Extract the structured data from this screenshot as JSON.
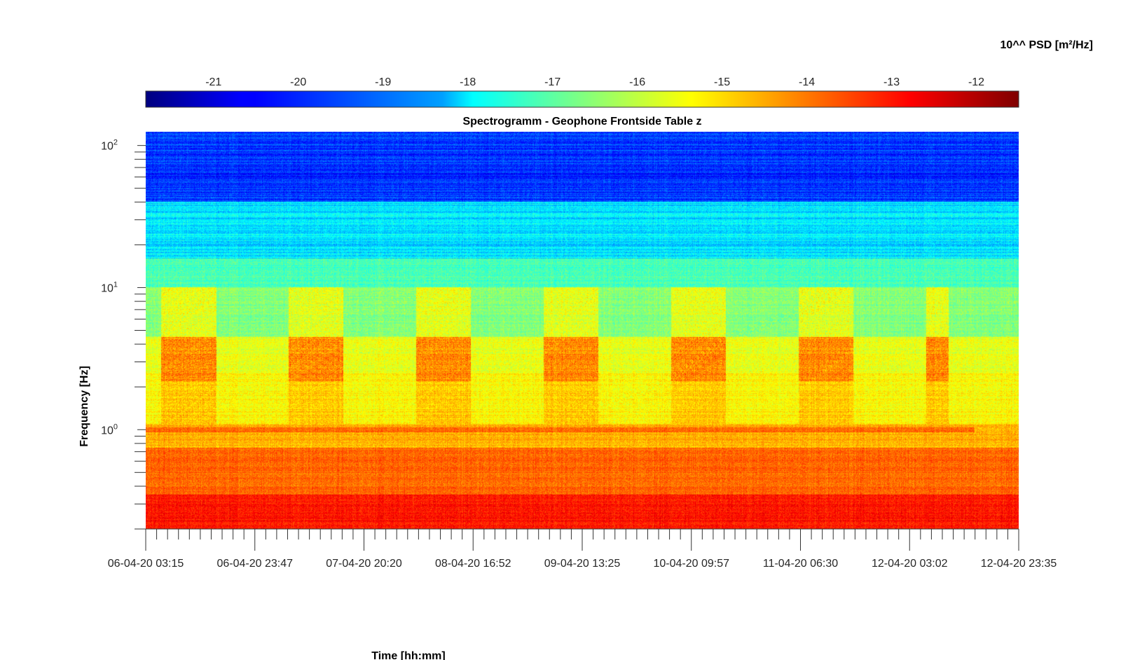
{
  "chart_data": {
    "type": "heatmap",
    "title": "Spectrogramm - Geophone Frontside Table z",
    "xlabel": "Time [hh:mm]",
    "ylabel": "Frequency [Hz]",
    "colorbar_label": "10^^ PSD [m²/Hz]",
    "colormap": "jet",
    "color_range": [
      -21.8,
      -11.5
    ],
    "colorbar_ticks": [
      -21,
      -20,
      -19,
      -18,
      -17,
      -16,
      -15,
      -14,
      -13,
      -12
    ],
    "x_tick_labels": [
      "06-04-20 03:15",
      "06-04-20 23:47",
      "07-04-20 20:20",
      "08-04-20 16:52",
      "09-04-20 13:25",
      "10-04-20 09:57",
      "11-04-20 06:30",
      "12-04-20 03:02",
      "12-04-20 23:35"
    ],
    "y_scale": "log",
    "y_range": [
      0.2,
      125
    ],
    "y_tick_exponents": [
      0,
      1,
      2
    ],
    "x_range": [
      "06-04-20 03:15",
      "12-04-20 23:35"
    ],
    "grid": false,
    "frequency_bands": [
      {
        "f_min": 0.2,
        "f_max": 0.35,
        "log10_psd": -13.0
      },
      {
        "f_min": 0.35,
        "f_max": 0.75,
        "log10_psd": -13.8
      },
      {
        "f_min": 0.75,
        "f_max": 1.1,
        "log10_psd": -14.6
      },
      {
        "f_min": 1.1,
        "f_max": 2.5,
        "log10_psd": -15.3
      },
      {
        "f_min": 2.5,
        "f_max": 4.5,
        "log10_psd": -15.6
      },
      {
        "f_min": 4.5,
        "f_max": 10,
        "log10_psd": -16.6
      },
      {
        "f_min": 10,
        "f_max": 16,
        "log10_psd": -17.2
      },
      {
        "f_min": 16,
        "f_max": 40,
        "log10_psd": -18.2
      },
      {
        "f_min": 40,
        "f_max": 125,
        "log10_psd": -20.0
      }
    ],
    "daytime_activity_band": {
      "f_min": 2.2,
      "f_max": 4.5,
      "log10_psd": -13.8
    },
    "persistent_line_frequency_hz": 1.0
  }
}
